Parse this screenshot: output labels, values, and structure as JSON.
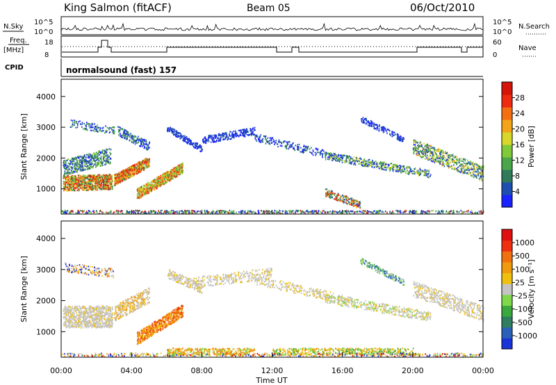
{
  "header": {
    "station": "King Salmon (fitACF)",
    "beam": "Beam 05",
    "date": "06/Oct/2010"
  },
  "top_panel": {
    "left_label": "N.Sky",
    "right_label": "N.Search",
    "left_ticks": [
      "10^5",
      "10^0"
    ],
    "right_ticks": [
      "10^5",
      "10^0"
    ],
    "freq_label_1": "Freq.",
    "freq_label_2": "[MHz]",
    "freq_ticks": [
      "18",
      "8"
    ],
    "nave_label": "Nave",
    "nave_ticks": [
      "60",
      "0"
    ],
    "cpid_label": "CPID",
    "cpid_value": "normalsound (fast) 157"
  },
  "chart_data": [
    {
      "type": "heatmap",
      "name": "power",
      "ylabel": "Slant Range [km]",
      "xlabel": "",
      "xlim": [
        "00:00",
        "00:00"
      ],
      "ylim": [
        180,
        4560
      ],
      "yticks": [
        "4000",
        "3000",
        "2000",
        "1000"
      ],
      "colorbar_label": "Power [dB]",
      "colorbar_ticks": [
        "28",
        "24",
        "20",
        "16",
        "12",
        "8",
        "4"
      ],
      "colorbar_colors": [
        "#1a22ff",
        "#1e4fb0",
        "#2f7a58",
        "#4aa64a",
        "#7fc93a",
        "#d8d82a",
        "#f2a51a",
        "#f36f12",
        "#ee2a10",
        "#d41508"
      ]
    },
    {
      "type": "heatmap",
      "name": "velocity",
      "ylabel": "Slant Range [km]",
      "xlabel": "Time UT",
      "xticks": [
        "00:00",
        "04:00",
        "08:00",
        "12:00",
        "16:00",
        "20:00",
        "00:00"
      ],
      "ylim": [
        180,
        4560
      ],
      "yticks": [
        "4000",
        "3000",
        "2000",
        "1000"
      ],
      "colorbar_label": "Velocity [m s⁻¹]",
      "colorbar_ticks": [
        "1000",
        "500",
        "100",
        "25",
        "-25",
        "-100",
        "-500",
        "-1000"
      ],
      "colorbar_colors": [
        "#1a33d8",
        "#2a60b8",
        "#2f7e60",
        "#3aa83c",
        "#7ed84a",
        "#c4c4c4",
        "#f0c010",
        "#f09a10",
        "#f07010",
        "#ee3010",
        "#e01010"
      ]
    }
  ]
}
